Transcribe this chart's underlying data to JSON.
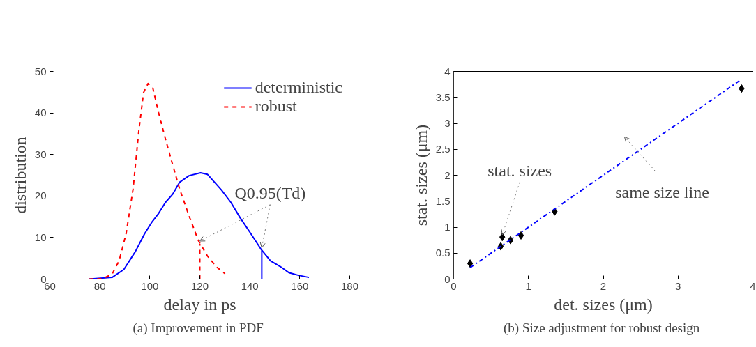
{
  "chart_data": [
    {
      "type": "line",
      "xlabel": "delay in ps",
      "ylabel": "distribution",
      "xlim": [
        60,
        180
      ],
      "xticks": [
        60,
        80,
        100,
        120,
        140,
        160,
        180
      ],
      "ylim": [
        0,
        50
      ],
      "yticks": [
        0,
        10,
        20,
        30,
        40,
        50
      ],
      "legend": "top right",
      "grid": false,
      "annotations": [
        {
          "text": "Q0.95(Td)",
          "x": 144.8,
          "y": 6.9
        },
        "(a)  Improvement in PDF"
      ],
      "series": [
        {
          "name": "deterministic",
          "color": "#0000ff",
          "line_style": "solid",
          "x": [
            75.6,
            84.9,
            89.6,
            94.2,
            97.9,
            100.7,
            103.5,
            106.3,
            109.1,
            111.9,
            115.7,
            120.3,
            123.1,
            125.9,
            128.7,
            132.4,
            136.2,
            139.9,
            144.6,
            148.3,
            152.0,
            155.8,
            159.5,
            163.7
          ],
          "values": [
            0,
            0.4,
            2.3,
            6.6,
            10.9,
            13.6,
            15.8,
            18.5,
            20.4,
            23.3,
            24.9,
            25.6,
            25.2,
            23.3,
            21.4,
            18.5,
            14.7,
            11.4,
            7.1,
            4.4,
            3.1,
            1.5,
            0.9,
            0.4
          ]
        },
        {
          "name": "robust",
          "color": "#ff0000",
          "line_style": "dashed",
          "x": [
            75.6,
            81.2,
            84.9,
            87.7,
            90.5,
            93.3,
            95.6,
            97.5,
            99.3,
            101.2,
            103.5,
            106.3,
            109.1,
            111.9,
            115.7,
            119.4,
            123.1,
            126.9,
            130.1
          ],
          "values": [
            0,
            0.1,
            1.2,
            4.4,
            10.9,
            21.7,
            35.7,
            44.9,
            47.1,
            46.0,
            40.1,
            33.6,
            27.6,
            21.7,
            15.2,
            9.3,
            5.5,
            2.8,
            1.3
          ]
        },
        {
          "color": "#0000ff",
          "line_style": "solid",
          "x": [
            144.8,
            144.8
          ],
          "values": [
            0,
            6.9
          ]
        },
        {
          "color": "#ff0000",
          "line_style": "dashed",
          "x": [
            120.0,
            120.0
          ],
          "values": [
            0,
            8.5
          ]
        }
      ]
    },
    {
      "type": "scatter",
      "xlabel": "det. sizes (μm)",
      "ylabel": "stat. sizes (μm)",
      "xlim": [
        0,
        4
      ],
      "xticks": [
        0,
        1,
        2,
        3,
        4
      ],
      "ylim": [
        0,
        4
      ],
      "yticks": [
        0,
        0.5,
        1,
        1.5,
        2,
        2.5,
        3,
        3.5,
        4
      ],
      "grid": false,
      "annotations": [
        {
          "text": "stat. sizes",
          "x": 0.65,
          "y": 0.81
        },
        "same size line",
        "(b)  Size adjustment for robust design"
      ],
      "series": [
        {
          "color": "#000000",
          "marker": "diamond",
          "x": [
            0.22,
            0.63,
            0.65,
            0.76,
            0.9,
            1.35,
            3.85
          ],
          "values": [
            0.3,
            0.63,
            0.81,
            0.75,
            0.84,
            1.3,
            3.67
          ]
        },
        {
          "type": "line",
          "color": "#0000ff",
          "line_style": "dashdot",
          "x": [
            0.22,
            3.82
          ],
          "values": [
            0.22,
            3.82
          ]
        }
      ]
    }
  ]
}
